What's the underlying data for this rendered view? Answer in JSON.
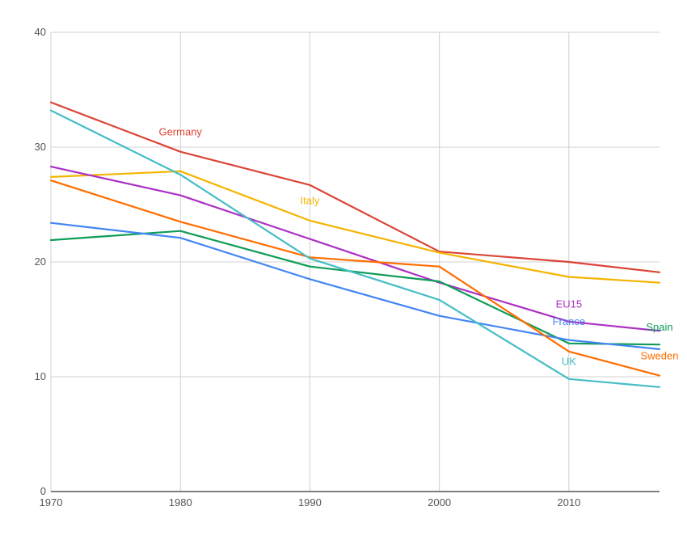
{
  "chart_data": {
    "type": "line",
    "title": "",
    "xlabel": "",
    "ylabel": "",
    "xlim": [
      1970,
      2017
    ],
    "ylim": [
      0,
      40
    ],
    "grid": true,
    "xticks": [
      1970,
      1980,
      1990,
      2000,
      2010
    ],
    "yticks": [
      0,
      10,
      20,
      30,
      40
    ],
    "x": [
      1970,
      1980,
      1990,
      2000,
      2010,
      2017
    ],
    "series": [
      {
        "name": "Germany",
        "color": "#db4437",
        "values": [
          33.9,
          29.6,
          26.7,
          20.9,
          20.0,
          19.1
        ]
      },
      {
        "name": "Italy",
        "color": "#f4b400",
        "values": [
          27.4,
          27.9,
          23.6,
          20.8,
          18.7,
          18.2
        ]
      },
      {
        "name": "EU15",
        "color": "#ab30c4",
        "values": [
          28.3,
          25.8,
          22.0,
          18.2,
          14.8,
          14.0
        ]
      },
      {
        "name": "Spain",
        "color": "#0f9d58",
        "values": [
          21.9,
          22.7,
          19.6,
          18.3,
          12.9,
          12.8
        ]
      },
      {
        "name": "France",
        "color": "#4285f4",
        "values": [
          23.4,
          22.1,
          18.5,
          15.3,
          13.2,
          12.4
        ]
      },
      {
        "name": "Sweden",
        "color": "#ff6d00",
        "values": [
          27.1,
          23.5,
          20.4,
          19.6,
          12.2,
          10.1
        ]
      },
      {
        "name": "UK",
        "color": "#46bdc6",
        "values": [
          33.2,
          27.6,
          20.3,
          16.7,
          9.8,
          9.1
        ]
      }
    ],
    "annotations": [
      {
        "text": "Germany",
        "series": "Germany",
        "x": 1980,
        "y": 31.3
      },
      {
        "text": "Italy",
        "series": "Italy",
        "x": 1990,
        "y": 25.3
      },
      {
        "text": "EU15",
        "series": "EU15",
        "x": 2010,
        "y": 16.3
      },
      {
        "text": "France",
        "series": "France",
        "x": 2010,
        "y": 14.8
      },
      {
        "text": "Spain",
        "series": "Spain",
        "x": 2017,
        "y": 14.3
      },
      {
        "text": "UK",
        "series": "UK",
        "x": 2010,
        "y": 11.3
      },
      {
        "text": "Sweden",
        "series": "Sweden",
        "x": 2017,
        "y": 11.8
      }
    ]
  }
}
